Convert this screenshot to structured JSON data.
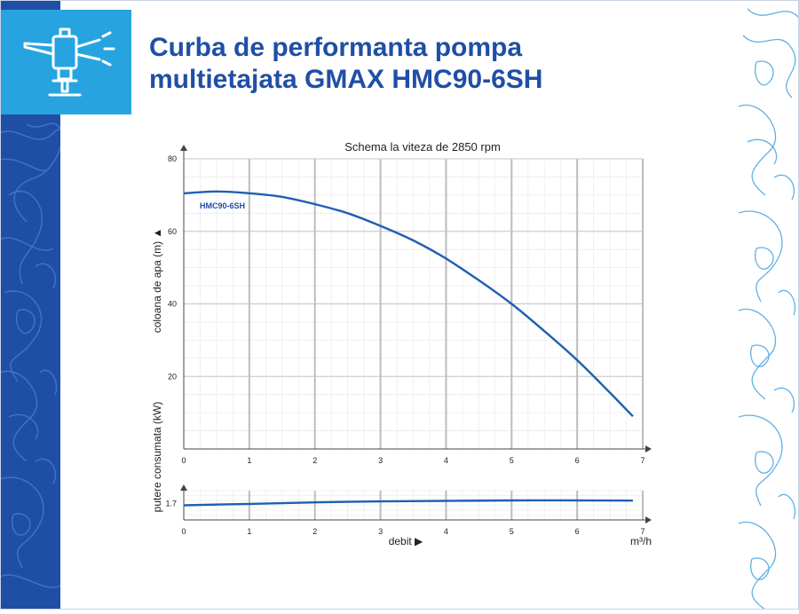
{
  "page": {
    "title_line1": "Curba de performanta pompa",
    "title_line2": "multietajata GMAX HMC90-6SH"
  },
  "icons": {
    "logo": "sprinkler-icon"
  },
  "colors": {
    "brand_dark": "#1f4fa5",
    "brand_light": "#27a4e0",
    "curve": "#1f5fb3"
  },
  "chart_data": [
    {
      "type": "line",
      "title": "Schema la viteza de 2850 rpm",
      "ylabel": "coloana de apa (m) ▲",
      "xlim": [
        0,
        7
      ],
      "ylim": [
        0,
        80
      ],
      "x_ticks": [
        "0",
        "1",
        "2",
        "3",
        "4",
        "5",
        "6",
        "7"
      ],
      "y_ticks": [
        "20",
        "40",
        "60",
        "80"
      ],
      "grid": true,
      "series": [
        {
          "name": "HMC90-6SH",
          "x": [
            0,
            0.5,
            1,
            1.5,
            2,
            2.5,
            3,
            3.5,
            4,
            4.5,
            5,
            5.5,
            6,
            6.5,
            6.85
          ],
          "y": [
            70.5,
            71,
            70.5,
            69.5,
            67.5,
            65,
            61.5,
            57.5,
            52.5,
            46.5,
            40,
            32.5,
            24.5,
            15.5,
            9
          ]
        }
      ]
    },
    {
      "type": "line",
      "ylabel": "putere consumata (kW)",
      "xlabel": "debit ▶",
      "x_unit": "m³/h",
      "xlim": [
        0,
        7
      ],
      "ylim": [
        0,
        3
      ],
      "x_ticks": [
        "0",
        "1",
        "2",
        "3",
        "4",
        "5",
        "6",
        "7"
      ],
      "y_ticks": [
        "1.7"
      ],
      "grid": true,
      "series": [
        {
          "name": "",
          "x": [
            0,
            1,
            2,
            3,
            4,
            5,
            6,
            6.85
          ],
          "y": [
            1.5,
            1.65,
            1.8,
            1.9,
            1.95,
            2.0,
            2.0,
            1.98
          ]
        }
      ]
    }
  ]
}
